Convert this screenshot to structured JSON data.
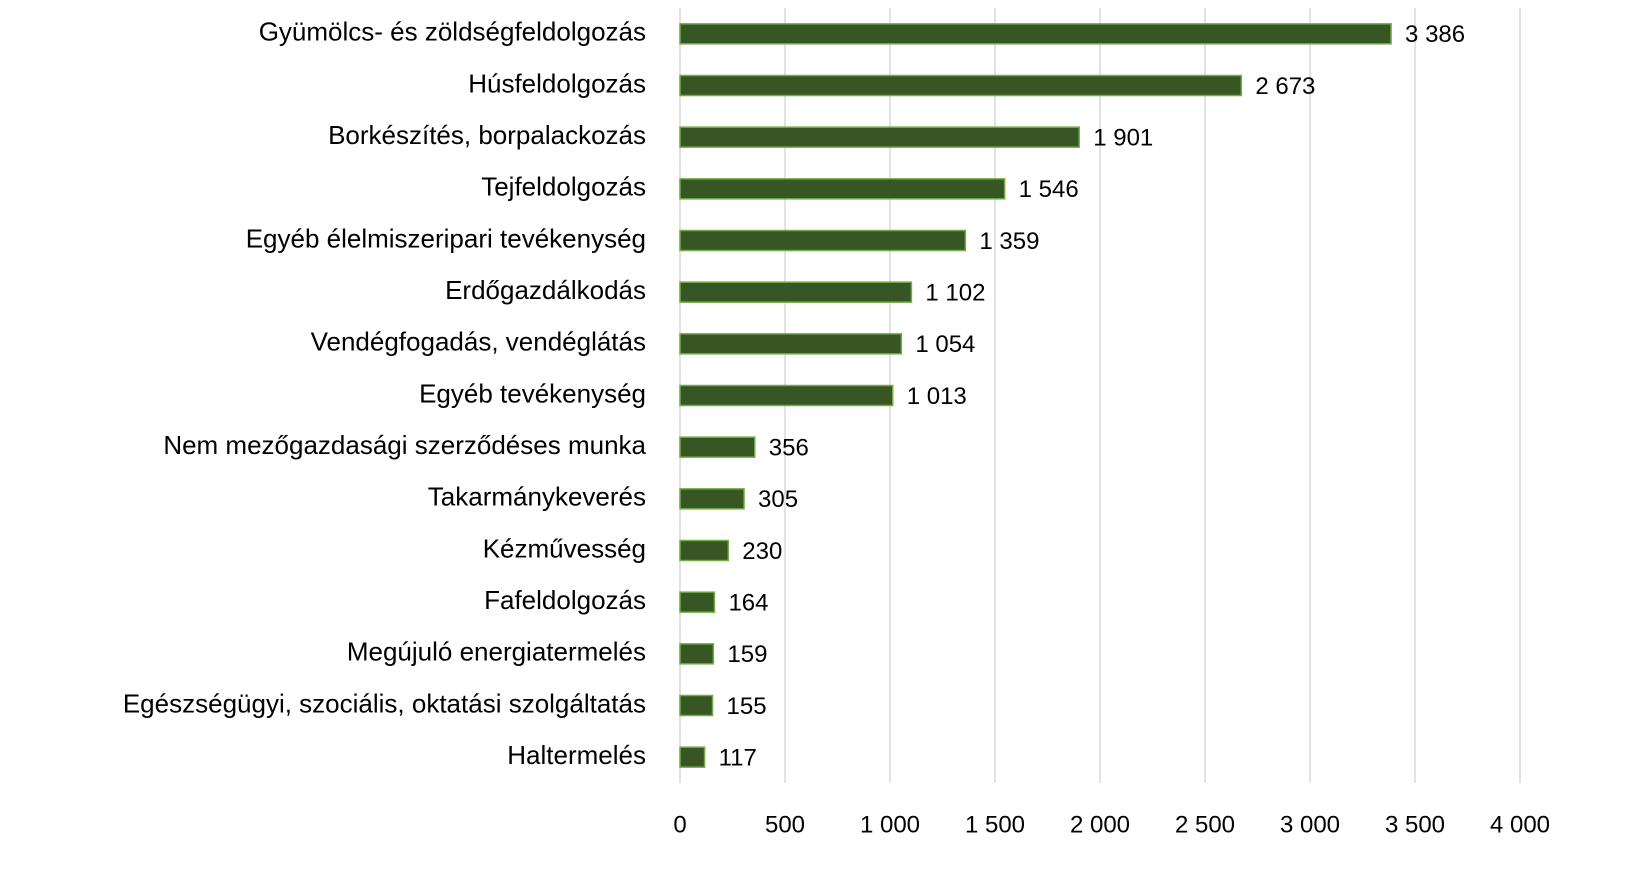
{
  "chart_data": {
    "type": "bar",
    "orientation": "horizontal",
    "categories": [
      "Gyümölcs- és zöldségfeldolgozás",
      "Húsfeldolgozás",
      "Borkészítés, borpalackozás",
      "Tejfeldolgozás",
      "Egyéb élelmiszeripari tevékenység",
      "Erdőgazdálkodás",
      "Vendégfogadás, vendéglátás",
      "Egyéb tevékenység",
      "Nem mezőgazdasági szerződéses munka",
      "Takarmánykeverés",
      "Kézművesség",
      "Fafeldolgozás",
      "Megújuló energiatermelés",
      "Egészségügyi, szociális, oktatási szolgáltatás",
      "Haltermelés"
    ],
    "values": [
      3386,
      2673,
      1901,
      1546,
      1359,
      1102,
      1054,
      1013,
      356,
      305,
      230,
      164,
      159,
      155,
      117
    ],
    "value_labels": [
      "3 386",
      "2 673",
      "1 901",
      "1 546",
      "1 359",
      "1 102",
      "1 054",
      "1 013",
      "356",
      "305",
      "230",
      "164",
      "159",
      "155",
      "117"
    ],
    "color": "#375623",
    "edge_color": "#70ad47",
    "xlim": [
      0,
      4000
    ],
    "xticks": [
      0,
      500,
      {
        "value": 1000,
        "label": "1 000"
      },
      {
        "value": 1500,
        "label": "1 500"
      },
      {
        "value": 2000,
        "label": "2 000"
      },
      {
        "value": 2500,
        "label": "2 500"
      },
      {
        "value": 3000,
        "label": "3 000"
      },
      {
        "value": 3500,
        "label": "3 500"
      },
      {
        "value": 4000,
        "label": "4 000"
      }
    ],
    "grid": true
  }
}
